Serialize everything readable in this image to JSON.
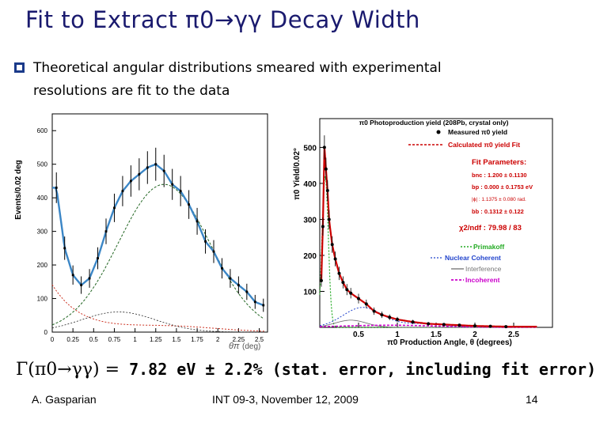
{
  "title": "Fit to Extract π0→γγ Decay Width",
  "bullet": {
    "line1": "Theoretical angular distributions smeared with experimental",
    "line2": "resolutions are fit to the data"
  },
  "left_plot": {
    "ylabel": "Events/0.02 deg",
    "xlabel_symbol": "θπ",
    "xlabel_unit": "(deg)",
    "yticks": [
      "0",
      "100",
      "200",
      "300",
      "400",
      "500",
      "600"
    ],
    "xticks": [
      "0",
      "0.25",
      "0.5",
      "0.75",
      "1",
      "1.25",
      "1.5",
      "1.75",
      "2",
      "2.25",
      "2.5"
    ]
  },
  "right_plot": {
    "header": "π0 Photoproduction yield (208Pb, crystal only)",
    "ylabel": "π0 Yield/0.02°",
    "xlabel": "π0 Production Angle, θ (degrees)",
    "yticks": [
      "100",
      "200",
      "300",
      "400",
      "500"
    ],
    "xticks": [
      "0.5",
      "1",
      "1.5",
      "2",
      "2.5"
    ],
    "legend_measured": "Measured π0 yield",
    "legend_calculated": "Calculated π0 yield Fit",
    "fit_title": "Fit Parameters:",
    "fit_params": [
      "bnc : 1.200 ± 0.1130",
      "bp : 0.000 ± 0.1753 eV",
      "|ϕ| : 1.1375 ± 0.080 rad.",
      "bb : 0.1312 ± 0.122"
    ],
    "chi2": "χ2/ndf : 79.98 / 83",
    "components": [
      "Primakoff",
      "Nuclear Coherent",
      "Interference",
      "Incoherent"
    ]
  },
  "result": {
    "lhs": "Γ(π0→γγ) =",
    "rhs": "7.82 eV ± 2.2% (stat. error, including fit error)"
  },
  "footer": {
    "author": "A. Gasparian",
    "event": "INT 09-3, November 12, 2009",
    "page": "14"
  },
  "chart_data": [
    {
      "type": "scatter",
      "xlabel": "θπ (deg)",
      "ylabel": "Events/0.02 deg",
      "xlim": [
        0,
        2.6
      ],
      "ylim": [
        0,
        650
      ],
      "series": [
        {
          "x": [
            0.05,
            0.15,
            0.25,
            0.35,
            0.45,
            0.55,
            0.65,
            0.75,
            0.85,
            0.95,
            1.05,
            1.15,
            1.25,
            1.35,
            1.45,
            1.55,
            1.65,
            1.75,
            1.85,
            1.95,
            2.05,
            2.15,
            2.25,
            2.35,
            2.45,
            2.55
          ],
          "values": [
            430,
            250,
            170,
            140,
            160,
            220,
            300,
            370,
            420,
            450,
            470,
            490,
            500,
            480,
            440,
            420,
            380,
            330,
            270,
            240,
            190,
            160,
            140,
            120,
            90,
            80
          ]
        }
      ],
      "components_peak": {
        "total": 510,
        "coherent_like_dashed": 440,
        "primakoff_like_red": 140
      }
    },
    {
      "type": "scatter",
      "xlabel": "π0 Production Angle, θ (degrees)",
      "ylabel": "π0 Yield/0.02°",
      "xlim": [
        0,
        3.0
      ],
      "ylim": [
        0,
        580
      ],
      "series": [
        {
          "name": "Measured π0 yield",
          "x": [
            0.02,
            0.04,
            0.06,
            0.08,
            0.1,
            0.12,
            0.16,
            0.2,
            0.25,
            0.3,
            0.35,
            0.4,
            0.5,
            0.6,
            0.7,
            0.8,
            0.9,
            1.0,
            1.2,
            1.4,
            1.6,
            1.8,
            2.0,
            2.2,
            2.4
          ],
          "values": [
            130,
            280,
            500,
            440,
            380,
            300,
            230,
            190,
            150,
            125,
            105,
            95,
            80,
            65,
            45,
            35,
            28,
            22,
            15,
            10,
            8,
            6,
            4,
            3,
            2
          ]
        }
      ],
      "yield_at_0.5": 80
    }
  ]
}
